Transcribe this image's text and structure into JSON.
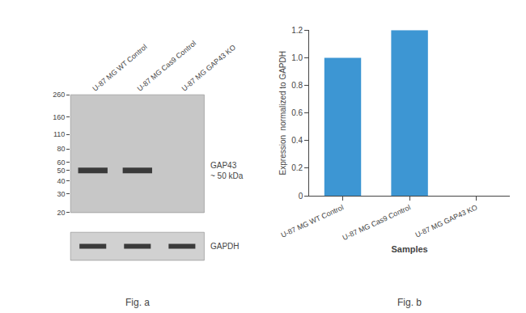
{
  "chart_data": [
    {
      "type": "blot",
      "title": "Fig. a",
      "categories": [
        "U-87 MG WT Control",
        "U-87 MG Cas9 Control",
        "U-87 MG GAP43 KO"
      ],
      "series": [
        {
          "name": "GAP43\n~ 50 kDa",
          "values": [
            50,
            50,
            null
          ]
        }
      ],
      "loading_control": {
        "name": "GAPDH",
        "values": [
          true,
          true,
          true
        ]
      },
      "ylim": [
        20,
        260
      ],
      "yticks": [
        260,
        160,
        110,
        80,
        60,
        50,
        40,
        30,
        20
      ],
      "log": "y",
      "grid": false
    },
    {
      "type": "bar",
      "title": "Fig. b",
      "categories": [
        "U-87 MG WT Control",
        "U-87 MG Cas9 Control",
        "U-87 MG GAP43 KO"
      ],
      "values": [
        1.0,
        1.2,
        0.0
      ],
      "color": "#3d96d3",
      "xlabel": "Samples",
      "ylabel": "Expression  normalized to GAPDH",
      "ylim": [
        0,
        1.2
      ],
      "yticks": [
        0,
        0.2,
        0.4,
        0.6,
        0.8,
        {
          "value": 1.0,
          "label": "1.0"
        },
        1.2
      ],
      "grid": false
    }
  ]
}
